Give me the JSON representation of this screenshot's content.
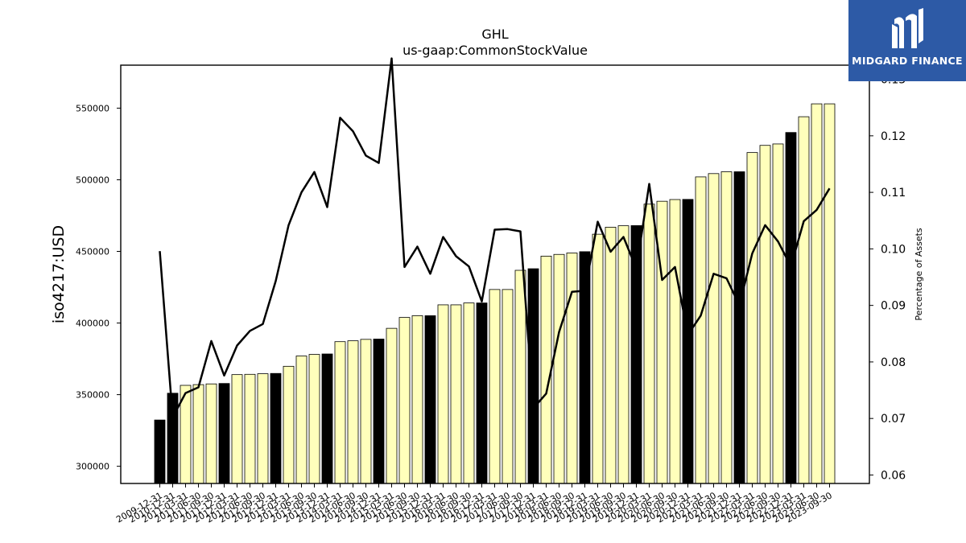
{
  "brand": {
    "name": "MIDGARD FINANCE",
    "background": "#2d5aa6"
  },
  "chart_data": {
    "type": "bar",
    "title": "GHL",
    "subtitle": "us-gaap:CommonStockValue",
    "ylabel": "iso4217:USD",
    "y2label": "Percentage of Assets",
    "ylim": [
      288000,
      580000
    ],
    "y2lim": [
      0.0585,
      0.1325
    ],
    "yticks": [
      300000,
      350000,
      400000,
      450000,
      500000,
      550000
    ],
    "y2ticks": [
      0.06,
      0.07,
      0.08,
      0.09,
      0.1,
      0.11,
      0.12,
      0.13
    ],
    "grid": false,
    "legend": "none",
    "categories": [
      "2009-12-31",
      "2010-12-31",
      "2011-03-31",
      "2011-06-30",
      "2011-09-30",
      "2011-12-31",
      "2012-03-31",
      "2012-06-30",
      "2012-09-30",
      "2012-12-31",
      "2013-03-31",
      "2013-06-30",
      "2013-09-30",
      "2013-12-31",
      "2014-03-31",
      "2014-06-30",
      "2014-09-30",
      "2014-12-31",
      "2015-03-31",
      "2015-06-30",
      "2015-09-30",
      "2015-12-31",
      "2016-03-31",
      "2016-06-30",
      "2016-09-30",
      "2016-12-31",
      "2017-03-31",
      "2017-06-30",
      "2017-09-30",
      "2017-12-31",
      "2018-03-31",
      "2018-06-30",
      "2018-09-30",
      "2018-12-31",
      "2019-03-31",
      "2019-06-30",
      "2019-09-30",
      "2019-12-31",
      "2020-03-31",
      "2020-06-30",
      "2020-09-30",
      "2020-12-31",
      "2021-03-31",
      "2021-06-30",
      "2021-09-30",
      "2021-12-31",
      "2022-03-31",
      "2022-06-30",
      "2022-09-30",
      "2022-12-31",
      "2023-03-31",
      "2023-06-30",
      "2023-09-30"
    ],
    "series": [
      {
        "type": "bar",
        "values": [
          332300,
          351000,
          356500,
          357000,
          357500,
          357800,
          364000,
          364200,
          364600,
          364800,
          369800,
          377000,
          378100,
          378400,
          387000,
          387600,
          388600,
          388800,
          396300,
          403900,
          405100,
          405100,
          412700,
          412700,
          414000,
          414000,
          423400,
          423400,
          436800,
          437900,
          446700,
          447900,
          448900,
          449800,
          462000,
          466900,
          467900,
          468000,
          483000,
          485000,
          486200,
          486300,
          502000,
          504300,
          505600,
          505600,
          519000,
          524000,
          525000,
          533000,
          544000,
          553000,
          553000
        ],
        "year_end_color": "#000000",
        "quarter_color": "#ffffbb"
      },
      {
        "type": "line",
        "axis": "right",
        "color": "#000000",
        "values": [
          0.0996,
          0.0702,
          0.0745,
          0.0755,
          0.0837,
          0.0776,
          0.0829,
          0.0855,
          0.0867,
          0.0943,
          0.1042,
          0.11,
          0.1136,
          0.1074,
          0.1232,
          0.1208,
          0.1165,
          0.1152,
          0.1337,
          0.0968,
          0.1004,
          0.0956,
          0.1021,
          0.0987,
          0.0969,
          0.0907,
          0.1034,
          0.1035,
          0.1031,
          0.0718,
          0.0744,
          0.0853,
          0.0924,
          0.0926,
          0.1048,
          0.0995,
          0.1021,
          0.0965,
          0.1115,
          0.0945,
          0.0968,
          0.0848,
          0.0882,
          0.0956,
          0.0948,
          0.09,
          0.0992,
          0.1042,
          0.1013,
          0.0969,
          0.1049,
          0.1069,
          0.1107
        ]
      }
    ]
  }
}
